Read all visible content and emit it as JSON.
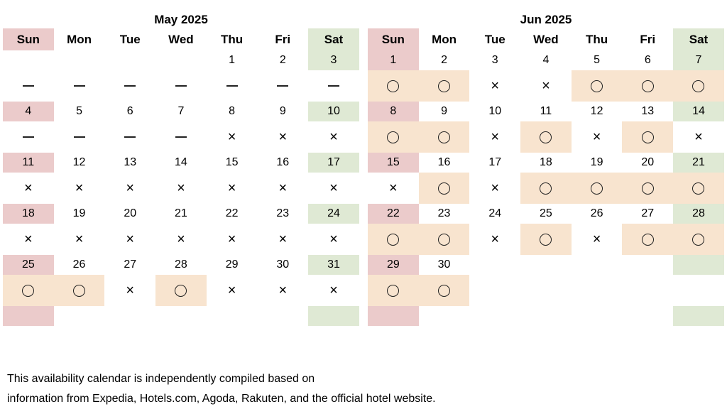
{
  "weekdays": [
    "Sun",
    "Mon",
    "Tue",
    "Wed",
    "Thu",
    "Fri",
    "Sat"
  ],
  "legend_marks": {
    "available": "〇",
    "unavailable": "×",
    "no_data": "—"
  },
  "colors": {
    "sunday": "#ebcbcb",
    "saturday": "#dfe9d4",
    "available": "#f8e4cf"
  },
  "months": [
    {
      "title": "May 2025",
      "weeks": [
        {
          "days": [
            "",
            "",
            "",
            "",
            "1",
            "2",
            "3"
          ],
          "status": [
            "dash",
            "dash",
            "dash",
            "dash",
            "dash",
            "dash",
            "dash"
          ]
        },
        {
          "days": [
            "4",
            "5",
            "6",
            "7",
            "8",
            "9",
            "10"
          ],
          "status": [
            "dash",
            "dash",
            "dash",
            "dash",
            "x",
            "x",
            "x"
          ]
        },
        {
          "days": [
            "11",
            "12",
            "13",
            "14",
            "15",
            "16",
            "17"
          ],
          "status": [
            "x",
            "x",
            "x",
            "x",
            "x",
            "x",
            "x"
          ]
        },
        {
          "days": [
            "18",
            "19",
            "20",
            "21",
            "22",
            "23",
            "24"
          ],
          "status": [
            "x",
            "x",
            "x",
            "x",
            "x",
            "x",
            "x"
          ]
        },
        {
          "days": [
            "25",
            "26",
            "27",
            "28",
            "29",
            "30",
            "31"
          ],
          "status": [
            "o",
            "o",
            "x",
            "o",
            "x",
            "x",
            "x"
          ]
        }
      ]
    },
    {
      "title": "Jun 2025",
      "weeks": [
        {
          "days": [
            "1",
            "2",
            "3",
            "4",
            "5",
            "6",
            "7"
          ],
          "status": [
            "o",
            "o",
            "x",
            "x",
            "o",
            "o",
            "o"
          ]
        },
        {
          "days": [
            "8",
            "9",
            "10",
            "11",
            "12",
            "13",
            "14"
          ],
          "status": [
            "o",
            "o",
            "x",
            "o",
            "x",
            "o",
            "x"
          ]
        },
        {
          "days": [
            "15",
            "16",
            "17",
            "18",
            "19",
            "20",
            "21"
          ],
          "status": [
            "x",
            "o",
            "x",
            "o",
            "o",
            "o",
            "o"
          ]
        },
        {
          "days": [
            "22",
            "23",
            "24",
            "25",
            "26",
            "27",
            "28"
          ],
          "status": [
            "o",
            "o",
            "x",
            "o",
            "x",
            "o",
            "o"
          ]
        },
        {
          "days": [
            "29",
            "30",
            "",
            "",
            "",
            "",
            ""
          ],
          "status": [
            "o",
            "o",
            "",
            "",
            "",
            "",
            ""
          ]
        }
      ]
    }
  ],
  "footnote": {
    "line1": "This availability calendar is independently compiled based on",
    "line2": "information from Expedia, Hotels.com, Agoda, Rakuten, and the official hotel website."
  }
}
